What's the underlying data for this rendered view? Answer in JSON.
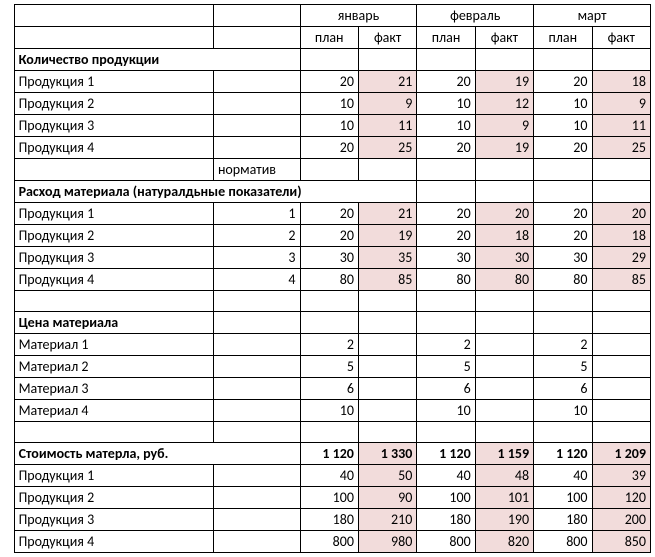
{
  "months": [
    "январь",
    "февраль",
    "март"
  ],
  "colLabels": {
    "plan": "план",
    "fact": "факт",
    "norm": "норматив"
  },
  "sections": {
    "qty": {
      "title": "Количество продукции"
    },
    "material": {
      "title": "Расход материала (натуралдьные показатели)"
    },
    "price": {
      "title": "Цена материала"
    },
    "cost": {
      "title": "Стоимость матерла, руб."
    }
  },
  "qty_rows": [
    {
      "name": "Продукция 1",
      "v": [
        "20",
        "21",
        "20",
        "19",
        "20",
        "18"
      ]
    },
    {
      "name": "Продукция 2",
      "v": [
        "10",
        "9",
        "10",
        "12",
        "10",
        "9"
      ]
    },
    {
      "name": "Продукция 3",
      "v": [
        "10",
        "11",
        "10",
        "9",
        "10",
        "11"
      ]
    },
    {
      "name": "Продукция 4",
      "v": [
        "20",
        "25",
        "20",
        "19",
        "20",
        "25"
      ]
    }
  ],
  "material_rows": [
    {
      "name": "Продукция 1",
      "norm": "1",
      "v": [
        "20",
        "21",
        "20",
        "20",
        "20",
        "20"
      ]
    },
    {
      "name": "Продукция 2",
      "norm": "2",
      "v": [
        "20",
        "19",
        "20",
        "18",
        "20",
        "18"
      ]
    },
    {
      "name": "Продукция 3",
      "norm": "3",
      "v": [
        "30",
        "35",
        "30",
        "30",
        "30",
        "29"
      ]
    },
    {
      "name": "Продукция 4",
      "norm": "4",
      "v": [
        "80",
        "85",
        "80",
        "80",
        "80",
        "85"
      ]
    }
  ],
  "price_rows": [
    {
      "name": "Материал 1",
      "v": [
        "2",
        "",
        "2",
        "",
        "2",
        ""
      ]
    },
    {
      "name": "Материал 2",
      "v": [
        "5",
        "",
        "5",
        "",
        "5",
        ""
      ]
    },
    {
      "name": "Материал 3",
      "v": [
        "6",
        "",
        "6",
        "",
        "6",
        ""
      ]
    },
    {
      "name": "Материал 4",
      "v": [
        "10",
        "",
        "10",
        "",
        "10",
        ""
      ]
    }
  ],
  "cost_total": {
    "v": [
      "1 120",
      "1 330",
      "1 120",
      "1 159",
      "1 120",
      "1 209"
    ]
  },
  "cost_rows": [
    {
      "name": "Продукция 1",
      "v": [
        "40",
        "50",
        "40",
        "48",
        "40",
        "39"
      ]
    },
    {
      "name": "Продукция 2",
      "v": [
        "100",
        "90",
        "100",
        "101",
        "100",
        "120"
      ]
    },
    {
      "name": "Продукция 3",
      "v": [
        "180",
        "210",
        "180",
        "190",
        "180",
        "200"
      ]
    },
    {
      "name": "Продукция 4",
      "v": [
        "800",
        "980",
        "800",
        "820",
        "800",
        "850"
      ]
    }
  ],
  "colors": {
    "fact_bg": "#f2dcdb",
    "border": "#000000"
  }
}
